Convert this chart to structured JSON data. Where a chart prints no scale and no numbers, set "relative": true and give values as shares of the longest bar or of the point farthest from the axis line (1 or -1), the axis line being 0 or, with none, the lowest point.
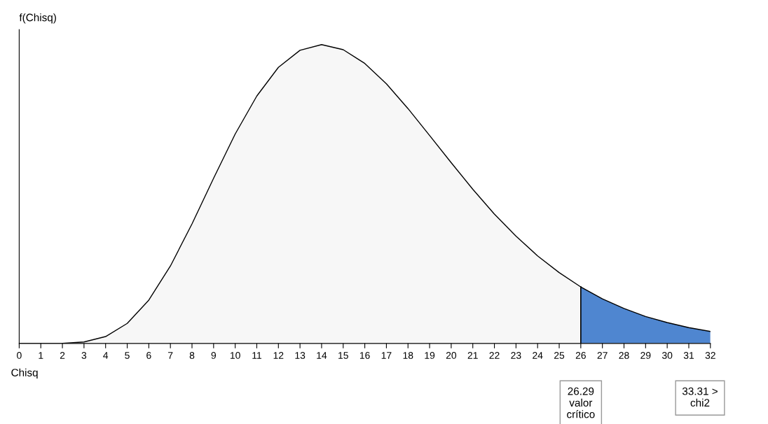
{
  "chart_data": {
    "type": "area",
    "relative": true,
    "xlabel": "Chisq",
    "ylabel": "f(Chisq)",
    "xlim": [
      0,
      32
    ],
    "xticks": [
      0,
      1,
      2,
      3,
      4,
      5,
      6,
      7,
      8,
      9,
      10,
      11,
      12,
      13,
      14,
      15,
      16,
      17,
      18,
      19,
      20,
      21,
      22,
      23,
      24,
      25,
      26,
      27,
      28,
      29,
      30,
      31,
      32
    ],
    "series": [
      {
        "color": "#f7f7f7",
        "x": [
          0,
          1,
          2,
          3,
          4,
          5,
          6,
          7,
          8,
          9,
          10,
          11,
          12,
          13,
          14,
          15,
          16,
          17,
          18,
          19,
          20,
          21,
          22,
          23,
          24,
          25,
          26
        ],
        "values": [
          0,
          0,
          0.0005,
          0.005,
          0.023,
          0.067,
          0.145,
          0.259,
          0.4,
          0.553,
          0.701,
          0.828,
          0.924,
          0.981,
          1,
          0.983,
          0.937,
          0.869,
          0.786,
          0.696,
          0.605,
          0.516,
          0.433,
          0.359,
          0.293,
          0.237,
          0.189
        ]
      },
      {
        "color": "#4f86d0",
        "x": [
          26,
          27,
          28,
          29,
          30,
          31,
          32
        ],
        "values": [
          0.189,
          0.149,
          0.117,
          0.09,
          0.07,
          0.053,
          0.04
        ]
      }
    ],
    "ref_lines": [
      {
        "axis": "x",
        "value": 26,
        "label": "26.29\nvalor\ncrítico",
        "color": "#000000"
      }
    ],
    "annotations": [
      "33.31 >\nchi2"
    ],
    "grid": false,
    "legend": false
  }
}
